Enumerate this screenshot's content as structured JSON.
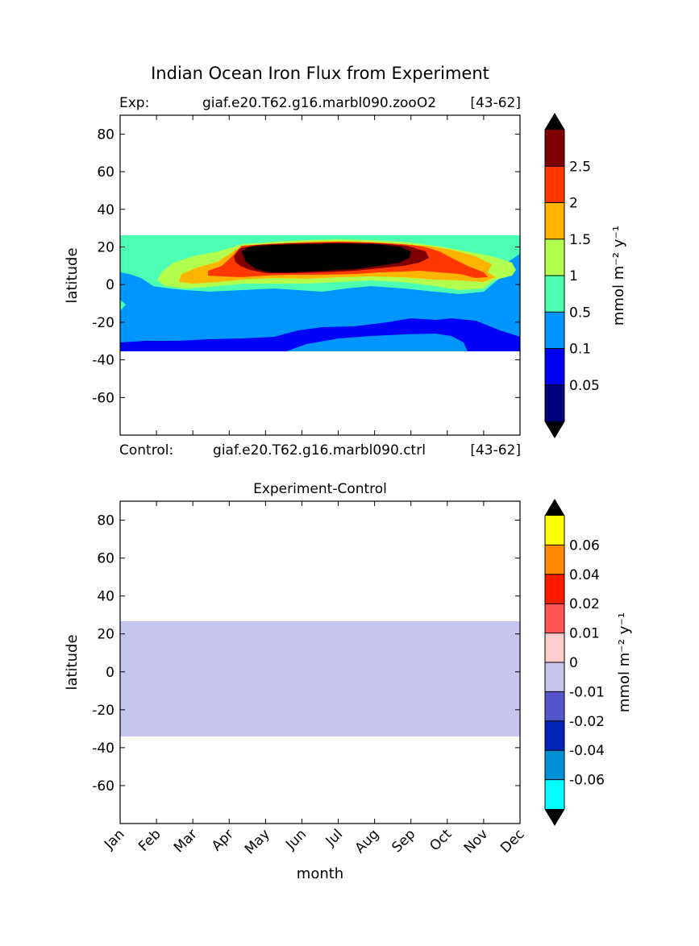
{
  "figure": {
    "title": "Indian Ocean Iron Flux from Experiment"
  },
  "chart_data": [
    {
      "type": "heatmap",
      "panel": "experiment",
      "header_left_label": "Exp:",
      "header_case": "giaf.e20.T62.g16.marbl090.zooO2",
      "header_years": "[43-62]",
      "footer_left_label": "Control:",
      "footer_case": "giaf.e20.T62.g16.marbl090.ctrl",
      "footer_years": "[43-62]",
      "xlabel": "",
      "ylabel": "latitude",
      "xlim": [
        0,
        11
      ],
      "ylim": [
        -80,
        90
      ],
      "yticks": [
        "80",
        "60",
        "40",
        "20",
        "0",
        "-20",
        "-40",
        "-60"
      ],
      "ytick_values": [
        80,
        60,
        40,
        20,
        0,
        -20,
        -40,
        -60
      ],
      "data_lat_range": [
        -34,
        27
      ],
      "colorbar": {
        "label": "mmol m⁻² y⁻¹",
        "levels": [
          0,
          0.05,
          0.1,
          0.5,
          1,
          1.5,
          2,
          2.5,
          3
        ],
        "tick_labels": [
          "0.05",
          "0.1",
          "0.5",
          "1",
          "1.5",
          "2",
          "2.5"
        ],
        "colors": [
          "#00007f",
          "#0000f6",
          "#0096ff",
          "#4dffb3",
          "#b3ff4d",
          "#ffb400",
          "#ff3700",
          "#7f0000"
        ],
        "under_color": "#000000",
        "over_color": "#000000"
      },
      "regions": [
        {
          "level": "0.05-0.1",
          "color": "#0000f6",
          "desc": "southern band"
        },
        {
          "level": "0.1-0.5",
          "color": "#0096ff",
          "desc": "middle band"
        },
        {
          "level": "0.5-1",
          "color": "#4dffb3"
        },
        {
          "level": "1-1.5",
          "color": "#b3ff4d"
        },
        {
          "level": "1.5-2",
          "color": "#ffb400"
        },
        {
          "level": "2-2.5",
          "color": "#ff3700"
        },
        {
          "level": "2.5-3",
          "color": "#7f0000"
        },
        {
          "level": ">3",
          "color": "#000000",
          "desc": "peak May-Aug around 15N"
        }
      ]
    },
    {
      "type": "heatmap",
      "panel": "difference",
      "title": "Experiment-Control",
      "xlabel": "month",
      "ylabel": "latitude",
      "categories": [
        "Jan",
        "Feb",
        "Mar",
        "Apr",
        "May",
        "Jun",
        "Jul",
        "Aug",
        "Sep",
        "Oct",
        "Nov",
        "Dec"
      ],
      "ylim": [
        -80,
        90
      ],
      "yticks": [
        "80",
        "60",
        "40",
        "20",
        "0",
        "-20",
        "-40",
        "-60"
      ],
      "ytick_values": [
        80,
        60,
        40,
        20,
        0,
        -20,
        -40,
        -60
      ],
      "data_lat_range": [
        -34,
        27
      ],
      "uniform_value_range": [
        -0.01,
        0
      ],
      "uniform_color": "#c5c5ee",
      "colorbar": {
        "label": "mmol m⁻² y⁻¹",
        "levels": [
          -0.08,
          -0.06,
          -0.04,
          -0.02,
          -0.01,
          0,
          0.01,
          0.02,
          0.04,
          0.06,
          0.08
        ],
        "tick_labels": [
          "-0.06",
          "-0.04",
          "-0.02",
          "-0.01",
          "0",
          "0.01",
          "0.02",
          "0.04",
          "0.06"
        ],
        "colors": [
          "#00ffff",
          "#0090d8",
          "#0025b8",
          "#5555cc",
          "#c5c5ee",
          "#ffcccc",
          "#ff5555",
          "#ff1a00",
          "#ff8800",
          "#ffff00"
        ],
        "under_color": "#000000",
        "over_color": "#000000"
      }
    }
  ]
}
